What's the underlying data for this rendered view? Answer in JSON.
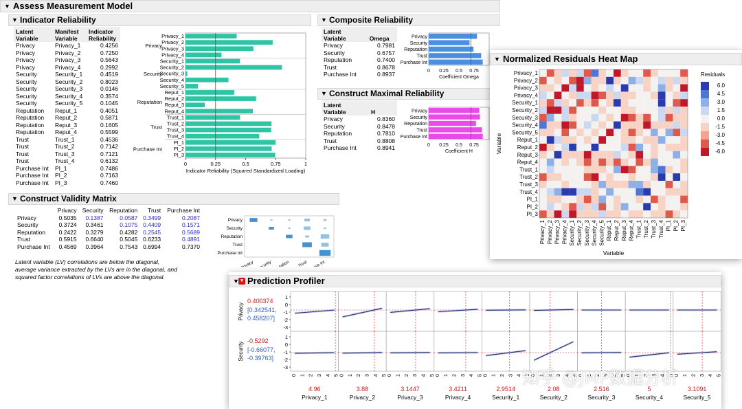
{
  "main": {
    "title": "Assess Measurement Model",
    "indicator": {
      "title": "Indicator Reliability",
      "headers": [
        "Latent Variable",
        "Manifest Variable",
        "Indicator Reliability"
      ],
      "rows": [
        [
          "Privacy",
          "Privacy_1",
          "0.4256"
        ],
        [
          "Privacy",
          "Privacy_2",
          "0.7250"
        ],
        [
          "Privacy",
          "Privacy_3",
          "0.5643"
        ],
        [
          "Privacy",
          "Privacy_4",
          "0.2992"
        ],
        [
          "Security",
          "Security_1",
          "0.4519"
        ],
        [
          "Security",
          "Security_2",
          "0.8023"
        ],
        [
          "Security",
          "Security_3",
          "0.0146"
        ],
        [
          "Security",
          "Security_4",
          "0.3574"
        ],
        [
          "Security",
          "Security_5",
          "0.1045"
        ],
        [
          "Reputation",
          "Reput_1",
          "0.4051"
        ],
        [
          "Reputation",
          "Reput_2",
          "0.5871"
        ],
        [
          "Reputation",
          "Reput_3",
          "0.1605"
        ],
        [
          "Reputation",
          "Reput_4",
          "0.5599"
        ],
        [
          "Trust",
          "Trust_1",
          "0.4536"
        ],
        [
          "Trust",
          "Trust_2",
          "0.7142"
        ],
        [
          "Trust",
          "Trust_3",
          "0.7121"
        ],
        [
          "Trust",
          "Trust_4",
          "0.6132"
        ],
        [
          "Purchase Int",
          "PI_1",
          "0.7486"
        ],
        [
          "Purchase Int",
          "PI_2",
          "0.7163"
        ],
        [
          "Purchase Int",
          "PI_3",
          "0.7460"
        ]
      ],
      "groups": [
        "Privacy",
        "Security",
        "Reputation",
        "Trust",
        "Purchase Int"
      ],
      "xlabel": "Indicator Reliability (Squared Standardized Loading)",
      "ticks": [
        "0",
        "0.25",
        "0.5",
        "0.75",
        "1"
      ],
      "color": "#2ec4a6"
    },
    "composite": {
      "title": "Composite Reliability",
      "headers": [
        "Latent Variable",
        "Omega"
      ],
      "rows": [
        [
          "Privacy",
          "0.7981"
        ],
        [
          "Security",
          "0.6757"
        ],
        [
          "Reputation",
          "0.7400"
        ],
        [
          "Trust",
          "0.8678"
        ],
        [
          "Purchase Int",
          "0.8937"
        ]
      ],
      "xlabel": "Coefficient Omega",
      "ticks": [
        "0",
        "0.25",
        "0.5",
        "0.75"
      ],
      "color": "#4a8fe0"
    },
    "maximal": {
      "title": "Construct Maximal Reliability",
      "headers": [
        "Latent Variable",
        "H"
      ],
      "rows": [
        [
          "Privacy",
          "0.8360"
        ],
        [
          "Security",
          "0.8478"
        ],
        [
          "Reputation",
          "0.7810"
        ],
        [
          "Trust",
          "0.8808"
        ],
        [
          "Purchase Int",
          "0.8941"
        ]
      ],
      "xlabel": "Coefficient H",
      "ticks": [
        "0",
        "0.25",
        "0.5",
        "0.75"
      ],
      "color": "#e84ce8"
    },
    "validity": {
      "title": "Construct Validity Matrix",
      "cols": [
        "Privacy",
        "Security",
        "Reputation",
        "Trust",
        "Purchase Int"
      ],
      "rows": [
        [
          "Privacy",
          "0.5035",
          "0.1387",
          "0.0587",
          "0.3499",
          "0.2087"
        ],
        [
          "Security",
          "0.3724",
          "0.3461",
          "0.1075",
          "0.4409",
          "0.1571"
        ],
        [
          "Reputation",
          "0.2422",
          "0.3279",
          "0.4282",
          "0.2545",
          "0.5689"
        ],
        [
          "Trust",
          "0.5915",
          "0.6640",
          "0.5045",
          "0.6233",
          "0.4891"
        ],
        [
          "Purchase Int",
          "0.4569",
          "0.3964",
          "0.7543",
          "0.6994",
          "0.7370"
        ]
      ],
      "note": "Latent variable (LV) correlations are below the diagonal, average variance extracted by the LVs are in the diagonal, and squared factor correlations of LVs are above the diagonal."
    }
  },
  "heatmap": {
    "title": "Normalized Residuals Heat Map",
    "variables": [
      "Privacy_1",
      "Privacy_2",
      "Privacy_3",
      "Privacy_4",
      "Security_1",
      "Security_2",
      "Security_3",
      "Security_4",
      "Security_5",
      "Reput_1",
      "Reput_2",
      "Reput_3",
      "Reput_4",
      "Trust_1",
      "Trust_2",
      "Trust_3",
      "Trust_4",
      "PI_1",
      "PI_2",
      "PI_3"
    ],
    "xlabel": "Variable",
    "ylabel": "Variable",
    "legend_title": "Residuals",
    "legend_ticks": [
      "6.0",
      "4.5",
      "3.0",
      "1.5",
      "0.0",
      "-1.5",
      "-3.0",
      "-4.5",
      "-6.0"
    ]
  },
  "profiler": {
    "title": "Prediction Profiler",
    "responses": [
      {
        "name": "Privacy",
        "value": "0.400374",
        "ci": "[0.342541, 0.458207]"
      },
      {
        "name": "Security",
        "value": "-0.5292",
        "ci": "[-0.66077, -0.39763]"
      }
    ],
    "factors": [
      {
        "name": "Privacy_1",
        "value": "4.96"
      },
      {
        "name": "Privacy_2",
        "value": "3.88"
      },
      {
        "name": "Privacy_3",
        "value": "3.1447"
      },
      {
        "name": "Privacy_4",
        "value": "3.4211"
      },
      {
        "name": "Security_1",
        "value": "2.9514"
      },
      {
        "name": "Security_2",
        "value": "2.08"
      },
      {
        "name": "Security_3",
        "value": "2.516"
      },
      {
        "name": "Security_4",
        "value": "5"
      },
      {
        "name": "Security_5",
        "value": "3.1091"
      }
    ],
    "y_ticks_top": [
      "1",
      "0",
      "-1",
      "-2",
      "-3"
    ],
    "y_ticks_bottom": [
      "1",
      "0",
      "-1",
      "-2",
      "-3"
    ],
    "x_ticks": [
      "0",
      "1",
      "2",
      "3",
      "4",
      "5"
    ]
  },
  "watermark": "知乎 @JMP数据分析",
  "colors": {
    "accent_red": "#d01818",
    "bar_teal": "#2ec4a6",
    "bar_blue": "#4a8fe0",
    "bar_pink": "#e84ce8",
    "dark_blue": "#1f2c7a"
  }
}
